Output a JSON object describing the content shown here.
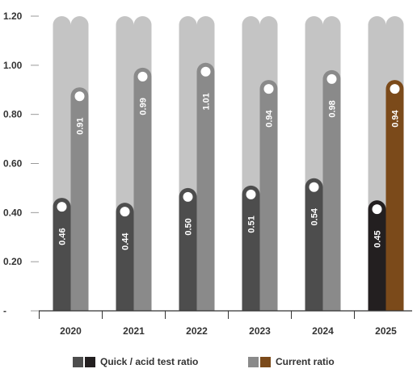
{
  "chart_data": {
    "type": "bar",
    "categories": [
      "2020",
      "2021",
      "2022",
      "2023",
      "2024",
      "2025"
    ],
    "series": [
      {
        "name": "Quick / acid test ratio",
        "values": [
          0.46,
          0.44,
          0.5,
          0.51,
          0.54,
          0.45
        ]
      },
      {
        "name": "Current ratio",
        "values": [
          0.91,
          0.99,
          1.01,
          0.94,
          0.98,
          0.94
        ]
      }
    ],
    "value_labels": [
      [
        "0.46",
        "0.44",
        "0.50",
        "0.51",
        "0.54",
        "0.45"
      ],
      [
        "0.91",
        "0.99",
        "1.01",
        "0.94",
        "0.98",
        "0.94"
      ]
    ],
    "yticks": [
      "-",
      "0.20",
      "0.40",
      "0.60",
      "0.80",
      "1.00",
      "1.20"
    ],
    "ylim": [
      0,
      1.2
    ],
    "background_track_max": 1.2,
    "colors": {
      "quick": "#4d4d4d",
      "current": "#8a8a8a",
      "quick_highlight": "#231f20",
      "current_highlight": "#7b4a1a",
      "track": "#c4c4c4",
      "axis": "#333333"
    },
    "legend": {
      "quick_label": "Quick / acid test ratio",
      "current_label": "Current ratio",
      "quick_swatches": [
        "#4d4d4d",
        "#231f20"
      ],
      "current_swatches": [
        "#8a8a8a",
        "#7b4a1a"
      ]
    },
    "highlight_category": "2025"
  }
}
